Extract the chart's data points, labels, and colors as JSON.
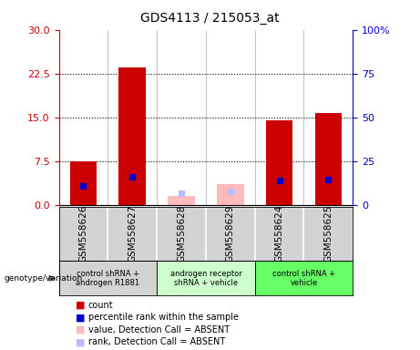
{
  "title": "GDS4113 / 215053_at",
  "samples": [
    "GSM558626",
    "GSM558627",
    "GSM558628",
    "GSM558629",
    "GSM558624",
    "GSM558625"
  ],
  "count_values": [
    7.5,
    23.5,
    null,
    null,
    14.5,
    15.8
  ],
  "percentile_values": [
    10.5,
    15.8,
    null,
    null,
    14.0,
    14.5
  ],
  "absent_value_values": [
    null,
    null,
    1.5,
    3.5,
    null,
    null
  ],
  "absent_rank_values": [
    null,
    null,
    6.5,
    7.5,
    null,
    null
  ],
  "ylim_left": [
    0,
    30
  ],
  "ylim_right": [
    0,
    100
  ],
  "yticks_left": [
    0,
    7.5,
    15,
    22.5,
    30
  ],
  "yticks_right": [
    0,
    25,
    50,
    75,
    100
  ],
  "left_color": "#cc0000",
  "right_color": "#0000cc",
  "absent_value_color": "#ffbbbb",
  "absent_rank_color": "#bbbbff",
  "plot_bg": "#ffffff",
  "sample_box_colors": [
    "#d3d3d3",
    "#d3d3d3",
    "#d3d3d3",
    "#d3d3d3",
    "#d3d3d3",
    "#d3d3d3"
  ],
  "group_data": [
    {
      "label": "control shRNA +\nandrogen R1881",
      "color": "#d3d3d3",
      "start": 0,
      "end": 1
    },
    {
      "label": "androgen receptor\nshRNA + vehicle",
      "color": "#ccffcc",
      "start": 2,
      "end": 3
    },
    {
      "label": "control shRNA +\nvehicle",
      "color": "#66ff66",
      "start": 4,
      "end": 5
    }
  ],
  "legend_items": [
    {
      "color": "#cc0000",
      "label": "count"
    },
    {
      "color": "#0000cc",
      "label": "percentile rank within the sample"
    },
    {
      "color": "#ffbbbb",
      "label": "value, Detection Call = ABSENT"
    },
    {
      "color": "#bbbbff",
      "label": "rank, Detection Call = ABSENT"
    }
  ],
  "bar_width": 0.55
}
